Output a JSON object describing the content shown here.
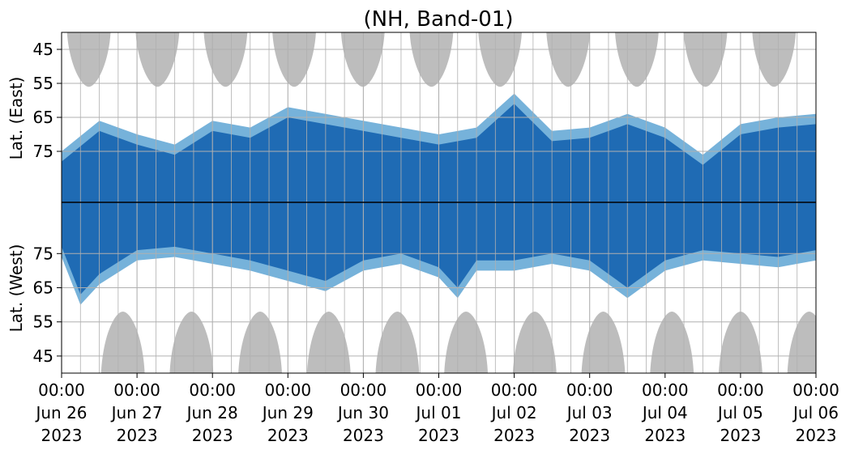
{
  "chart_data": {
    "type": "heatmap",
    "title": "(NH, Band-01)",
    "ylabel_east": "Lat. (East)",
    "ylabel_west": "Lat. (West)",
    "x_range": [
      "2023-06-26T00:00",
      "2023-07-06T00:00"
    ],
    "x_ticks": [
      {
        "time": "00:00",
        "date": "Jun 26",
        "year": "2023"
      },
      {
        "time": "00:00",
        "date": "Jun 27",
        "year": "2023"
      },
      {
        "time": "00:00",
        "date": "Jun 28",
        "year": "2023"
      },
      {
        "time": "00:00",
        "date": "Jun 29",
        "year": "2023"
      },
      {
        "time": "00:00",
        "date": "Jun 30",
        "year": "2023"
      },
      {
        "time": "00:00",
        "date": "Jul 01",
        "year": "2023"
      },
      {
        "time": "00:00",
        "date": "Jul 02",
        "year": "2023"
      },
      {
        "time": "00:00",
        "date": "Jul 03",
        "year": "2023"
      },
      {
        "time": "00:00",
        "date": "Jul 04",
        "year": "2023"
      },
      {
        "time": "00:00",
        "date": "Jul 05",
        "year": "2023"
      },
      {
        "time": "00:00",
        "date": "Jul 06",
        "year": "2023"
      }
    ],
    "y_ticks_east": [
      "45",
      "55",
      "65",
      "75"
    ],
    "y_ticks_west": [
      "75",
      "65",
      "55",
      "45"
    ],
    "lat_range_east": [
      40,
      90
    ],
    "lat_range_west": [
      90,
      40
    ],
    "grid": true,
    "colors": {
      "coverage_dark": "#1f6bb4",
      "coverage_light": "#5ea4d4",
      "night_gray": "#bdbdbd",
      "grid": "#b0b0b0",
      "divider": "#000000"
    },
    "night_lobes_east": [
      {
        "center": "2023-06-26T08:40",
        "min_lat": 56
      },
      {
        "center": "2023-06-27T06:30",
        "min_lat": 56
      },
      {
        "center": "2023-06-28T04:10",
        "min_lat": 56
      },
      {
        "center": "2023-06-29T02:00",
        "min_lat": 56
      },
      {
        "center": "2023-06-29T23:50",
        "min_lat": 56
      },
      {
        "center": "2023-06-30T21:40",
        "min_lat": 56
      },
      {
        "center": "2023-07-01T19:30",
        "min_lat": 56
      },
      {
        "center": "2023-07-02T17:10",
        "min_lat": 56
      },
      {
        "center": "2023-07-03T15:00",
        "min_lat": 56
      },
      {
        "center": "2023-07-04T12:50",
        "min_lat": 56
      },
      {
        "center": "2023-07-05T10:40",
        "min_lat": 56
      }
    ],
    "night_lobes_west": [
      {
        "center": "2023-06-26T19:30",
        "min_lat": 58
      },
      {
        "center": "2023-06-27T17:20",
        "min_lat": 58
      },
      {
        "center": "2023-06-28T15:10",
        "min_lat": 58
      },
      {
        "center": "2023-06-29T13:00",
        "min_lat": 58
      },
      {
        "center": "2023-06-30T10:50",
        "min_lat": 58
      },
      {
        "center": "2023-07-01T08:40",
        "min_lat": 58
      },
      {
        "center": "2023-07-02T06:30",
        "min_lat": 58
      },
      {
        "center": "2023-07-03T04:20",
        "min_lat": 58
      },
      {
        "center": "2023-07-04T02:10",
        "min_lat": 58
      },
      {
        "center": "2023-07-05T00:00",
        "min_lat": 58
      },
      {
        "center": "2023-07-05T21:50",
        "min_lat": 58
      }
    ],
    "coverage_east": [
      {
        "t": "2023-06-26T00:00",
        "min_lat": 75
      },
      {
        "t": "2023-06-26T12:00",
        "min_lat": 66
      },
      {
        "t": "2023-06-27T00:00",
        "min_lat": 70
      },
      {
        "t": "2023-06-27T12:00",
        "min_lat": 73
      },
      {
        "t": "2023-06-28T00:00",
        "min_lat": 66
      },
      {
        "t": "2023-06-28T12:00",
        "min_lat": 68
      },
      {
        "t": "2023-06-29T00:00",
        "min_lat": 62
      },
      {
        "t": "2023-06-29T12:00",
        "min_lat": 64
      },
      {
        "t": "2023-06-30T00:00",
        "min_lat": 66
      },
      {
        "t": "2023-06-30T12:00",
        "min_lat": 68
      },
      {
        "t": "2023-07-01T00:00",
        "min_lat": 70
      },
      {
        "t": "2023-07-01T12:00",
        "min_lat": 68
      },
      {
        "t": "2023-07-02T00:00",
        "min_lat": 58
      },
      {
        "t": "2023-07-02T12:00",
        "min_lat": 69
      },
      {
        "t": "2023-07-03T00:00",
        "min_lat": 68
      },
      {
        "t": "2023-07-03T12:00",
        "min_lat": 64
      },
      {
        "t": "2023-07-04T00:00",
        "min_lat": 68
      },
      {
        "t": "2023-07-04T12:00",
        "min_lat": 76
      },
      {
        "t": "2023-07-05T00:00",
        "min_lat": 67
      },
      {
        "t": "2023-07-05T12:00",
        "min_lat": 65
      },
      {
        "t": "2023-07-06T00:00",
        "min_lat": 64
      }
    ],
    "coverage_west": [
      {
        "t": "2023-06-26T00:00",
        "min_lat": 74
      },
      {
        "t": "2023-06-26T06:00",
        "min_lat": 60
      },
      {
        "t": "2023-06-26T12:00",
        "min_lat": 66
      },
      {
        "t": "2023-06-27T00:00",
        "min_lat": 73
      },
      {
        "t": "2023-06-27T12:00",
        "min_lat": 74
      },
      {
        "t": "2023-06-28T00:00",
        "min_lat": 72
      },
      {
        "t": "2023-06-28T12:00",
        "min_lat": 70
      },
      {
        "t": "2023-06-29T00:00",
        "min_lat": 67
      },
      {
        "t": "2023-06-29T12:00",
        "min_lat": 64
      },
      {
        "t": "2023-06-30T00:00",
        "min_lat": 70
      },
      {
        "t": "2023-06-30T12:00",
        "min_lat": 72
      },
      {
        "t": "2023-07-01T00:00",
        "min_lat": 68
      },
      {
        "t": "2023-07-01T06:00",
        "min_lat": 62
      },
      {
        "t": "2023-07-01T12:00",
        "min_lat": 70
      },
      {
        "t": "2023-07-02T00:00",
        "min_lat": 70
      },
      {
        "t": "2023-07-02T12:00",
        "min_lat": 72
      },
      {
        "t": "2023-07-03T00:00",
        "min_lat": 70
      },
      {
        "t": "2023-07-03T12:00",
        "min_lat": 62
      },
      {
        "t": "2023-07-04T00:00",
        "min_lat": 70
      },
      {
        "t": "2023-07-04T12:00",
        "min_lat": 73
      },
      {
        "t": "2023-07-05T00:00",
        "min_lat": 72
      },
      {
        "t": "2023-07-05T12:00",
        "min_lat": 71
      },
      {
        "t": "2023-07-06T00:00",
        "min_lat": 73
      }
    ]
  }
}
